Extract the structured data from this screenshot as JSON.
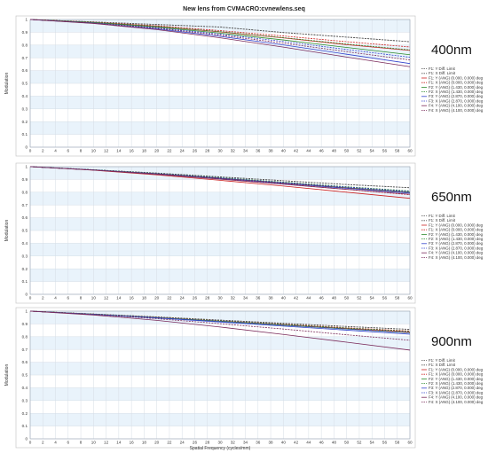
{
  "figure": {
    "title": "New lens from CVMACRO:cvnewlens.seq"
  },
  "legend_entries": [
    "F1: Y Diff. Limit",
    "F1: X Diff. Limit",
    "F1: Y (ANG) (0.000, 0.000) deg",
    "F1: X (ANG) (0.000, 0.000) deg",
    "F2: Y (ANG) (1.430, 0.000) deg",
    "F2: X (ANG) (1.430, 0.000) deg",
    "F3: Y (ANG) (2.870, 0.000) deg",
    "F3: X (ANG) (2.870, 0.000) deg",
    "F4: Y (ANG) (4.100, 0.000) deg",
    "F4: X (ANG) (4.100, 0.000) deg"
  ],
  "series_colors": [
    "#555555",
    "#555555",
    "#cc2222",
    "#cc2222",
    "#2e8b2e",
    "#2e8b2e",
    "#3344cc",
    "#3344cc",
    "#7a2a5a",
    "#7a2a5a"
  ],
  "series_dashed": [
    true,
    true,
    false,
    true,
    false,
    true,
    false,
    true,
    false,
    true
  ],
  "chart_data": [
    {
      "type": "line",
      "wavelength_label": "400nm",
      "xlabel": "",
      "ylabel": "Modulation",
      "xlim": [
        0,
        60
      ],
      "ylim": [
        0,
        1
      ],
      "x_ticks": [
        0,
        2,
        4,
        6,
        8,
        10,
        12,
        14,
        16,
        18,
        20,
        22,
        24,
        26,
        28,
        30,
        32,
        34,
        36,
        38,
        40,
        42,
        44,
        46,
        48,
        50,
        52,
        54,
        56,
        58,
        60
      ],
      "y_ticks": [
        "0",
        "0.1",
        "0.2",
        "0.3",
        "0.4",
        "0.5",
        "0.6",
        "0.7",
        "0.8",
        "0.9",
        "1"
      ],
      "grid": true,
      "legend_position": "right",
      "x": [
        0,
        10,
        20,
        30,
        40,
        50,
        60
      ],
      "series": [
        {
          "values": [
            1.0,
            0.981,
            0.961,
            0.941,
            0.898,
            0.862,
            0.826
          ]
        },
        {
          "values": [
            1.0,
            0.981,
            0.961,
            0.941,
            0.898,
            0.862,
            0.826
          ]
        },
        {
          "values": [
            1.0,
            0.978,
            0.946,
            0.903,
            0.856,
            0.803,
            0.758
          ]
        },
        {
          "values": [
            1.0,
            0.979,
            0.951,
            0.913,
            0.871,
            0.826,
            0.785
          ]
        },
        {
          "values": [
            1.0,
            0.976,
            0.941,
            0.893,
            0.84,
            0.781,
            0.724
          ]
        },
        {
          "values": [
            1.0,
            0.978,
            0.946,
            0.905,
            0.858,
            0.808,
            0.762
          ]
        },
        {
          "values": [
            1.0,
            0.971,
            0.926,
            0.868,
            0.801,
            0.728,
            0.655
          ]
        },
        {
          "values": [
            1.0,
            0.974,
            0.936,
            0.885,
            0.828,
            0.765,
            0.704
          ]
        },
        {
          "values": [
            1.0,
            0.969,
            0.921,
            0.857,
            0.784,
            0.706,
            0.63
          ]
        },
        {
          "values": [
            1.0,
            0.972,
            0.931,
            0.877,
            0.815,
            0.748,
            0.683
          ]
        }
      ]
    },
    {
      "type": "line",
      "wavelength_label": "650nm",
      "xlabel": "",
      "ylabel": "Modulation",
      "xlim": [
        0,
        60
      ],
      "ylim": [
        0,
        1
      ],
      "x_ticks": [
        0,
        2,
        4,
        6,
        8,
        10,
        12,
        14,
        16,
        18,
        20,
        22,
        24,
        26,
        28,
        30,
        32,
        34,
        36,
        38,
        40,
        42,
        44,
        46,
        48,
        50,
        52,
        54,
        56,
        58,
        60
      ],
      "y_ticks": [
        "0",
        "0.1",
        "0.2",
        "0.3",
        "0.4",
        "0.5",
        "0.6",
        "0.7",
        "0.8",
        "0.9",
        "1"
      ],
      "grid": true,
      "legend_position": "right",
      "x": [
        0,
        10,
        20,
        30,
        40,
        50,
        60
      ],
      "series": [
        {
          "values": [
            1.0,
            0.976,
            0.95,
            0.92,
            0.89,
            0.86,
            0.835
          ]
        },
        {
          "values": [
            1.0,
            0.976,
            0.95,
            0.92,
            0.89,
            0.86,
            0.835
          ]
        },
        {
          "values": [
            1.0,
            0.972,
            0.936,
            0.893,
            0.848,
            0.8,
            0.752
          ]
        },
        {
          "values": [
            1.0,
            0.974,
            0.942,
            0.904,
            0.864,
            0.822,
            0.78
          ]
        },
        {
          "values": [
            1.0,
            0.975,
            0.945,
            0.91,
            0.873,
            0.835,
            0.8
          ]
        },
        {
          "values": [
            1.0,
            0.975,
            0.947,
            0.914,
            0.879,
            0.843,
            0.81
          ]
        },
        {
          "values": [
            1.0,
            0.974,
            0.943,
            0.907,
            0.869,
            0.83,
            0.793
          ]
        },
        {
          "values": [
            1.0,
            0.975,
            0.946,
            0.912,
            0.876,
            0.84,
            0.806
          ]
        },
        {
          "values": [
            1.0,
            0.973,
            0.94,
            0.902,
            0.862,
            0.822,
            0.784
          ]
        },
        {
          "values": [
            1.0,
            0.974,
            0.944,
            0.909,
            0.872,
            0.834,
            0.798
          ]
        }
      ]
    },
    {
      "type": "line",
      "wavelength_label": "900nm",
      "xlabel": "Spatial Frequency (cycles/mm)",
      "ylabel": "Modulation",
      "xlim": [
        0,
        60
      ],
      "ylim": [
        0,
        1
      ],
      "x_ticks": [
        0,
        2,
        4,
        6,
        8,
        10,
        12,
        14,
        16,
        18,
        20,
        22,
        24,
        26,
        28,
        30,
        32,
        34,
        36,
        38,
        40,
        42,
        44,
        46,
        48,
        50,
        52,
        54,
        56,
        58,
        60
      ],
      "y_ticks": [
        "0",
        "0.1",
        "0.2",
        "0.3",
        "0.4",
        "0.5",
        "0.6",
        "0.7",
        "0.8",
        "0.9",
        "1"
      ],
      "grid": true,
      "legend_position": "right",
      "x": [
        0,
        10,
        20,
        30,
        40,
        50,
        60
      ],
      "series": [
        {
          "values": [
            1.0,
            0.978,
            0.955,
            0.93,
            0.905,
            0.88,
            0.857
          ]
        },
        {
          "values": [
            1.0,
            0.978,
            0.955,
            0.93,
            0.905,
            0.88,
            0.857
          ]
        },
        {
          "values": [
            1.0,
            0.976,
            0.95,
            0.922,
            0.893,
            0.864,
            0.837
          ]
        },
        {
          "values": [
            1.0,
            0.977,
            0.952,
            0.925,
            0.898,
            0.87,
            0.845
          ]
        },
        {
          "values": [
            1.0,
            0.976,
            0.949,
            0.92,
            0.89,
            0.86,
            0.831
          ]
        },
        {
          "values": [
            1.0,
            0.977,
            0.951,
            0.924,
            0.896,
            0.868,
            0.842
          ]
        },
        {
          "values": [
            1.0,
            0.975,
            0.946,
            0.915,
            0.883,
            0.851,
            0.82
          ]
        },
        {
          "values": [
            1.0,
            0.976,
            0.949,
            0.92,
            0.89,
            0.86,
            0.832
          ]
        },
        {
          "values": [
            1.0,
            0.97,
            0.928,
            0.876,
            0.818,
            0.757,
            0.695
          ]
        },
        {
          "values": [
            1.0,
            0.974,
            0.941,
            0.902,
            0.86,
            0.815,
            0.772
          ]
        }
      ]
    }
  ]
}
